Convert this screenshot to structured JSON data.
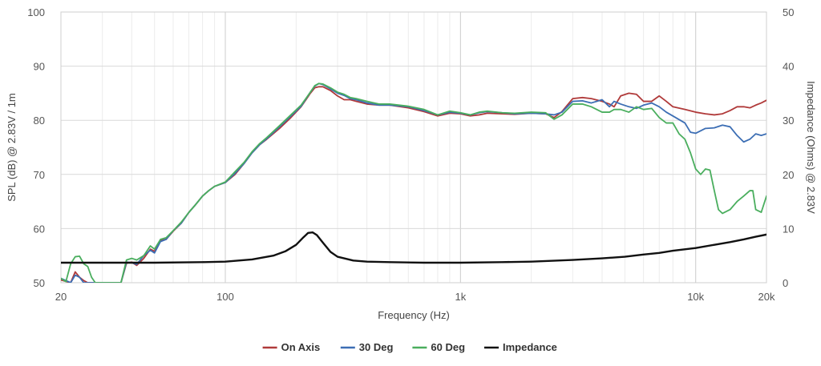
{
  "chart_data": {
    "type": "line",
    "xscale": "log",
    "xlim": [
      20,
      20000
    ],
    "x_ticks": [
      {
        "value": 20,
        "label": "20"
      },
      {
        "value": 100,
        "label": "100"
      },
      {
        "value": 1000,
        "label": "1k"
      },
      {
        "value": 10000,
        "label": "10k"
      },
      {
        "value": 20000,
        "label": "20k"
      }
    ],
    "xlabel": "Frequency (Hz)",
    "ylabel_left": "SPL (dB) @ 2.83V / 1m",
    "ylim_left": [
      50,
      100
    ],
    "y_ticks_left": [
      "50",
      "60",
      "70",
      "80",
      "90",
      "100"
    ],
    "ylabel_right": "Impedance (Ohms) @ 2.83V",
    "ylim_right": [
      0,
      50
    ],
    "y_ticks_right": [
      "0",
      "10",
      "20",
      "30",
      "40",
      "50"
    ],
    "grid": true,
    "legend_position": "bottom",
    "series": [
      {
        "name": "On Axis",
        "color": "#b03a3a",
        "axis": "left",
        "points": [
          [
            20,
            50.5
          ],
          [
            22,
            50
          ],
          [
            23,
            52
          ],
          [
            24,
            51
          ],
          [
            25,
            50.4
          ],
          [
            26,
            50
          ],
          [
            36,
            50
          ],
          [
            38,
            53.6
          ],
          [
            40,
            53.8
          ],
          [
            42,
            53.2
          ],
          [
            45,
            54.5
          ],
          [
            48,
            56.2
          ],
          [
            50,
            55.8
          ],
          [
            53,
            57.8
          ],
          [
            56,
            58
          ],
          [
            60,
            59.5
          ],
          [
            65,
            61
          ],
          [
            70,
            63
          ],
          [
            75,
            64.5
          ],
          [
            80,
            66
          ],
          [
            85,
            67
          ],
          [
            90,
            67.8
          ],
          [
            100,
            68.5
          ],
          [
            110,
            70
          ],
          [
            120,
            72
          ],
          [
            130,
            74
          ],
          [
            140,
            75.5
          ],
          [
            150,
            76.5
          ],
          [
            170,
            78.5
          ],
          [
            190,
            80.5
          ],
          [
            210,
            82.5
          ],
          [
            230,
            85
          ],
          [
            240,
            86
          ],
          [
            250,
            86.2
          ],
          [
            260,
            86.2
          ],
          [
            280,
            85.5
          ],
          [
            300,
            84.5
          ],
          [
            320,
            83.8
          ],
          [
            340,
            83.8
          ],
          [
            360,
            83.5
          ],
          [
            400,
            83
          ],
          [
            450,
            82.8
          ],
          [
            500,
            82.8
          ],
          [
            600,
            82.3
          ],
          [
            700,
            81.6
          ],
          [
            800,
            80.8
          ],
          [
            900,
            81.3
          ],
          [
            1000,
            81.2
          ],
          [
            1100,
            80.8
          ],
          [
            1200,
            81
          ],
          [
            1300,
            81.3
          ],
          [
            1500,
            81.2
          ],
          [
            1700,
            81.1
          ],
          [
            2000,
            81.3
          ],
          [
            2300,
            81.2
          ],
          [
            2500,
            80.5
          ],
          [
            2700,
            81.6
          ],
          [
            3000,
            84
          ],
          [
            3300,
            84.2
          ],
          [
            3600,
            84
          ],
          [
            4000,
            83.5
          ],
          [
            4300,
            83
          ],
          [
            4500,
            82.5
          ],
          [
            4800,
            84.5
          ],
          [
            5200,
            85
          ],
          [
            5600,
            84.8
          ],
          [
            6000,
            83.5
          ],
          [
            6500,
            83.5
          ],
          [
            7000,
            84.5
          ],
          [
            7500,
            83.5
          ],
          [
            8000,
            82.5
          ],
          [
            9000,
            82
          ],
          [
            10000,
            81.5
          ],
          [
            11000,
            81.2
          ],
          [
            12000,
            81
          ],
          [
            13000,
            81.2
          ],
          [
            14000,
            81.8
          ],
          [
            15000,
            82.5
          ],
          [
            16000,
            82.5
          ],
          [
            17000,
            82.3
          ],
          [
            18000,
            82.8
          ],
          [
            19000,
            83.2
          ],
          [
            20000,
            83.7
          ]
        ]
      },
      {
        "name": "30 Deg",
        "color": "#3c6eb4",
        "axis": "left",
        "points": [
          [
            20,
            50.8
          ],
          [
            22,
            50
          ],
          [
            23,
            51.4
          ],
          [
            24,
            51
          ],
          [
            25,
            50
          ],
          [
            36,
            50
          ],
          [
            38,
            53.8
          ],
          [
            40,
            53.7
          ],
          [
            42,
            53.4
          ],
          [
            45,
            55
          ],
          [
            48,
            56
          ],
          [
            50,
            55.5
          ],
          [
            53,
            57.6
          ],
          [
            56,
            58
          ],
          [
            60,
            59.6
          ],
          [
            65,
            61
          ],
          [
            70,
            63
          ],
          [
            75,
            64.5
          ],
          [
            80,
            66
          ],
          [
            85,
            67
          ],
          [
            90,
            67.8
          ],
          [
            100,
            68.5
          ],
          [
            110,
            70.2
          ],
          [
            120,
            72
          ],
          [
            130,
            74
          ],
          [
            140,
            75.5
          ],
          [
            150,
            76.6
          ],
          [
            170,
            78.8
          ],
          [
            190,
            80.8
          ],
          [
            210,
            82.6
          ],
          [
            230,
            85.2
          ],
          [
            240,
            86.3
          ],
          [
            250,
            86.8
          ],
          [
            260,
            86.6
          ],
          [
            280,
            85.8
          ],
          [
            300,
            85
          ],
          [
            320,
            84.6
          ],
          [
            340,
            84
          ],
          [
            360,
            83.8
          ],
          [
            400,
            83.2
          ],
          [
            450,
            82.8
          ],
          [
            500,
            82.8
          ],
          [
            600,
            82.5
          ],
          [
            700,
            81.8
          ],
          [
            800,
            81
          ],
          [
            900,
            81.5
          ],
          [
            1000,
            81.3
          ],
          [
            1100,
            81
          ],
          [
            1200,
            81.4
          ],
          [
            1300,
            81.6
          ],
          [
            1500,
            81.4
          ],
          [
            1700,
            81.2
          ],
          [
            2000,
            81.3
          ],
          [
            2300,
            81.2
          ],
          [
            2500,
            81
          ],
          [
            2700,
            81.5
          ],
          [
            3000,
            83.5
          ],
          [
            3300,
            83.6
          ],
          [
            3600,
            83.2
          ],
          [
            4000,
            83.8
          ],
          [
            4300,
            82.5
          ],
          [
            4500,
            83.5
          ],
          [
            4800,
            83
          ],
          [
            5200,
            82.5
          ],
          [
            5600,
            82.2
          ],
          [
            6000,
            82.8
          ],
          [
            6500,
            83.2
          ],
          [
            7000,
            82.5
          ],
          [
            7500,
            81.5
          ],
          [
            8000,
            80.8
          ],
          [
            9000,
            79.5
          ],
          [
            9500,
            77.8
          ],
          [
            10000,
            77.6
          ],
          [
            11000,
            78.5
          ],
          [
            12000,
            78.6
          ],
          [
            13000,
            79.1
          ],
          [
            14000,
            78.8
          ],
          [
            15000,
            77.2
          ],
          [
            16000,
            76
          ],
          [
            17000,
            76.5
          ],
          [
            18000,
            77.5
          ],
          [
            19000,
            77.2
          ],
          [
            20000,
            77.5
          ]
        ]
      },
      {
        "name": "60 Deg",
        "color": "#4aae5e",
        "axis": "left",
        "points": [
          [
            20,
            50.8
          ],
          [
            21,
            50.2
          ],
          [
            22,
            53.5
          ],
          [
            23,
            54.8
          ],
          [
            24,
            54.9
          ],
          [
            25,
            53.5
          ],
          [
            26,
            53
          ],
          [
            27,
            51
          ],
          [
            28,
            50
          ],
          [
            36,
            50
          ],
          [
            38,
            54.2
          ],
          [
            40,
            54.5
          ],
          [
            42,
            54.2
          ],
          [
            45,
            55
          ],
          [
            48,
            56.8
          ],
          [
            50,
            56.2
          ],
          [
            53,
            58
          ],
          [
            56,
            58.3
          ],
          [
            60,
            59.6
          ],
          [
            65,
            61.2
          ],
          [
            70,
            63
          ],
          [
            75,
            64.5
          ],
          [
            80,
            66
          ],
          [
            85,
            67
          ],
          [
            90,
            67.8
          ],
          [
            100,
            68.6
          ],
          [
            110,
            70.5
          ],
          [
            120,
            72.2
          ],
          [
            130,
            74.2
          ],
          [
            140,
            75.7
          ],
          [
            150,
            76.8
          ],
          [
            170,
            79
          ],
          [
            190,
            81
          ],
          [
            210,
            82.8
          ],
          [
            230,
            85.2
          ],
          [
            240,
            86.4
          ],
          [
            250,
            86.8
          ],
          [
            260,
            86.7
          ],
          [
            280,
            86
          ],
          [
            300,
            85.2
          ],
          [
            320,
            84.8
          ],
          [
            340,
            84.2
          ],
          [
            360,
            84
          ],
          [
            400,
            83.5
          ],
          [
            450,
            83
          ],
          [
            500,
            83
          ],
          [
            600,
            82.6
          ],
          [
            700,
            82
          ],
          [
            800,
            81
          ],
          [
            900,
            81.7
          ],
          [
            1000,
            81.4
          ],
          [
            1100,
            81
          ],
          [
            1200,
            81.5
          ],
          [
            1300,
            81.7
          ],
          [
            1500,
            81.4
          ],
          [
            1700,
            81.3
          ],
          [
            2000,
            81.5
          ],
          [
            2300,
            81.4
          ],
          [
            2500,
            80.2
          ],
          [
            2700,
            81
          ],
          [
            3000,
            83
          ],
          [
            3300,
            83
          ],
          [
            3600,
            82.5
          ],
          [
            4000,
            81.5
          ],
          [
            4300,
            81.5
          ],
          [
            4500,
            82
          ],
          [
            4800,
            82
          ],
          [
            5200,
            81.5
          ],
          [
            5600,
            82.5
          ],
          [
            6000,
            82
          ],
          [
            6500,
            82.2
          ],
          [
            7000,
            80.5
          ],
          [
            7500,
            79.5
          ],
          [
            8000,
            79.5
          ],
          [
            8500,
            77.5
          ],
          [
            9000,
            76.5
          ],
          [
            9500,
            74
          ],
          [
            10000,
            71
          ],
          [
            10500,
            70
          ],
          [
            11000,
            71
          ],
          [
            11500,
            70.8
          ],
          [
            12000,
            67
          ],
          [
            12500,
            63.5
          ],
          [
            13000,
            62.8
          ],
          [
            14000,
            63.5
          ],
          [
            15000,
            65
          ],
          [
            16000,
            66
          ],
          [
            17000,
            67
          ],
          [
            17500,
            67
          ],
          [
            18000,
            63.5
          ],
          [
            19000,
            63
          ],
          [
            20000,
            66
          ]
        ]
      },
      {
        "name": "Impedance",
        "color": "#111111",
        "axis": "right",
        "points": [
          [
            20,
            3.7
          ],
          [
            30,
            3.7
          ],
          [
            50,
            3.7
          ],
          [
            80,
            3.8
          ],
          [
            100,
            3.9
          ],
          [
            130,
            4.3
          ],
          [
            160,
            5
          ],
          [
            180,
            5.8
          ],
          [
            200,
            7
          ],
          [
            215,
            8.4
          ],
          [
            225,
            9.2
          ],
          [
            235,
            9.3
          ],
          [
            245,
            8.8
          ],
          [
            260,
            7.4
          ],
          [
            280,
            5.7
          ],
          [
            300,
            4.8
          ],
          [
            350,
            4.1
          ],
          [
            400,
            3.9
          ],
          [
            500,
            3.8
          ],
          [
            700,
            3.7
          ],
          [
            1000,
            3.7
          ],
          [
            1500,
            3.8
          ],
          [
            2000,
            3.9
          ],
          [
            3000,
            4.2
          ],
          [
            4000,
            4.5
          ],
          [
            5000,
            4.8
          ],
          [
            6000,
            5.2
          ],
          [
            7000,
            5.5
          ],
          [
            8000,
            5.9
          ],
          [
            10000,
            6.4
          ],
          [
            12000,
            7
          ],
          [
            14000,
            7.5
          ],
          [
            16000,
            8
          ],
          [
            18000,
            8.5
          ],
          [
            20000,
            8.9
          ]
        ]
      }
    ]
  }
}
